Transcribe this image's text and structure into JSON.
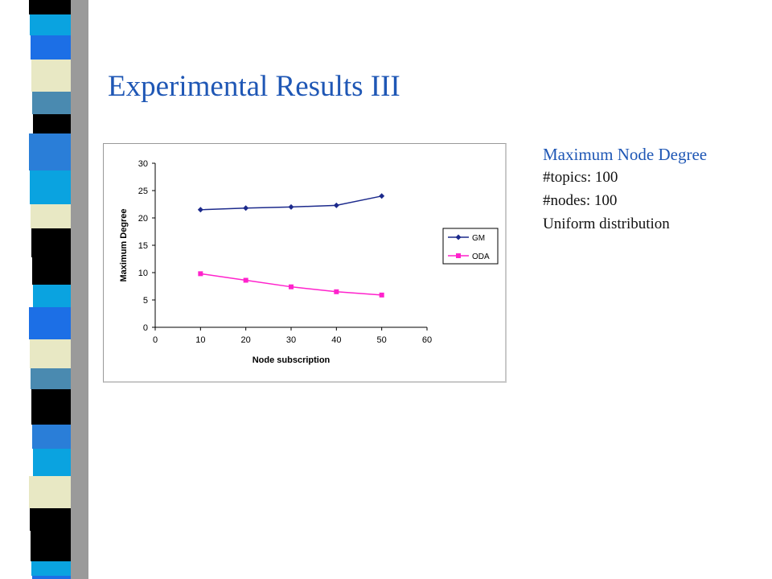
{
  "slide": {
    "title": "Experimental Results III"
  },
  "info": {
    "heading": "Maximum Node Degree",
    "lines": [
      "#topics: 100",
      "#nodes: 100",
      "Uniform distribution"
    ]
  },
  "colors": {
    "title": "#1f57b5",
    "gm": "#1c2a8c",
    "oda": "#ff22cc"
  },
  "chart_data": {
    "type": "line",
    "title": "",
    "xlabel": "Node subscription",
    "ylabel": "Maximum Degree",
    "xlim": [
      0,
      60
    ],
    "ylim": [
      0,
      30
    ],
    "xticks": [
      0,
      10,
      20,
      30,
      40,
      50,
      60
    ],
    "yticks": [
      0,
      5,
      10,
      15,
      20,
      25,
      30
    ],
    "grid": false,
    "legend_position": "right",
    "x": [
      10,
      20,
      30,
      40,
      50
    ],
    "series": [
      {
        "name": "GM",
        "values": [
          21.5,
          21.8,
          22.0,
          22.3,
          24.0
        ],
        "marker": "diamond"
      },
      {
        "name": "ODA",
        "values": [
          9.8,
          8.6,
          7.4,
          6.5,
          5.9
        ],
        "marker": "square"
      }
    ]
  }
}
